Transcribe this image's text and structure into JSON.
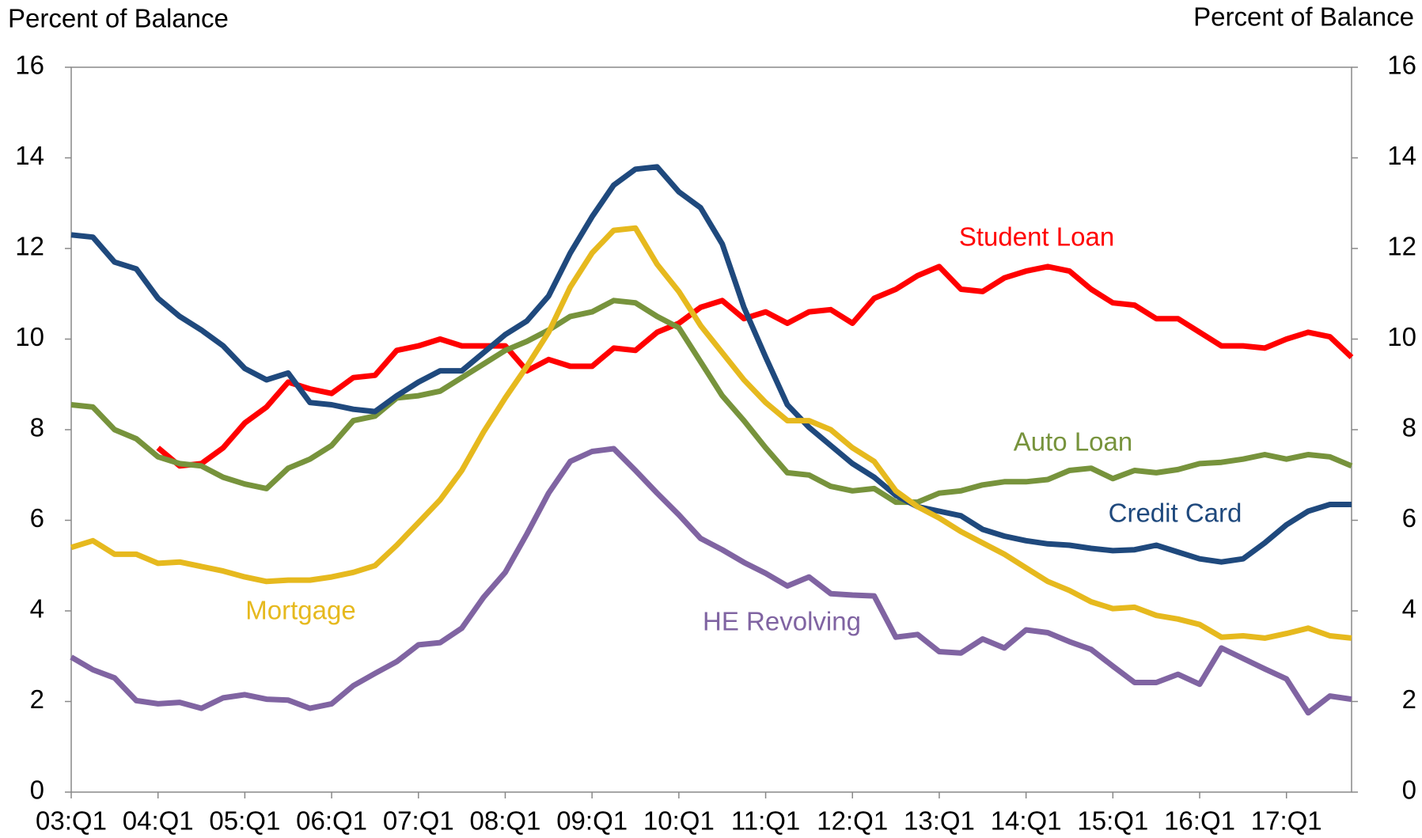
{
  "chart_data": {
    "type": "line",
    "y_label": "Percent of Balance",
    "y2_label": "Percent of Balance",
    "categories": [
      "03:Q1",
      null,
      null,
      null,
      "04:Q1",
      null,
      null,
      null,
      "05:Q1",
      null,
      null,
      null,
      "06:Q1",
      null,
      null,
      null,
      "07:Q1",
      null,
      null,
      null,
      "08:Q1",
      null,
      null,
      null,
      "09:Q1",
      null,
      null,
      null,
      "10:Q1",
      null,
      null,
      null,
      "11:Q1",
      null,
      null,
      null,
      "12:Q1",
      null,
      null,
      null,
      "13:Q1",
      null,
      null,
      null,
      "14:Q1",
      null,
      null,
      null,
      "15:Q1",
      null,
      null,
      null,
      "16:Q1",
      null,
      null,
      null,
      "17:Q1",
      null,
      null,
      null
    ],
    "ylim": [
      0,
      16
    ],
    "yticks": [
      0,
      2,
      4,
      6,
      8,
      10,
      12,
      14,
      16
    ],
    "y2lim": [
      0,
      16
    ],
    "y2ticks": [
      0,
      2,
      4,
      6,
      8,
      10,
      12,
      14,
      16
    ],
    "grid": false,
    "series": [
      {
        "name": "Student Loan",
        "color": "#ff0000",
        "values": [
          null,
          null,
          null,
          null,
          7.6,
          7.2,
          7.25,
          7.6,
          8.15,
          8.5,
          9.05,
          8.9,
          8.8,
          9.15,
          9.2,
          9.75,
          9.85,
          10.0,
          9.85,
          9.85,
          9.85,
          9.3,
          9.55,
          9.4,
          9.4,
          9.8,
          9.75,
          10.15,
          10.35,
          10.7,
          10.85,
          10.45,
          10.6,
          10.35,
          10.6,
          10.65,
          10.35,
          10.9,
          11.1,
          11.4,
          11.6,
          11.1,
          11.05,
          11.35,
          11.5,
          11.6,
          11.5,
          11.1,
          10.8,
          10.75,
          10.45,
          10.45,
          10.15,
          9.85,
          9.85,
          9.8,
          10.0,
          10.15,
          10.05,
          9.6
        ]
      },
      {
        "name": "Auto Loan",
        "color": "#77933c",
        "values": [
          8.55,
          8.5,
          8.0,
          7.8,
          7.4,
          7.25,
          7.2,
          6.95,
          6.8,
          6.7,
          7.15,
          7.35,
          7.65,
          8.2,
          8.3,
          8.7,
          8.75,
          8.85,
          9.15,
          9.45,
          9.75,
          9.95,
          10.2,
          10.5,
          10.6,
          10.85,
          10.8,
          10.5,
          10.25,
          9.5,
          8.75,
          8.2,
          7.6,
          7.05,
          7.0,
          6.75,
          6.65,
          6.7,
          6.4,
          6.4,
          6.6,
          6.65,
          6.78,
          6.85,
          6.85,
          6.9,
          7.1,
          7.15,
          6.92,
          7.1,
          7.05,
          7.12,
          7.25,
          7.28,
          7.35,
          7.45,
          7.35,
          7.45,
          7.4,
          7.2
        ]
      },
      {
        "name": "Credit Card",
        "color": "#1f497d",
        "values": [
          12.3,
          12.25,
          11.7,
          11.55,
          10.9,
          10.5,
          10.2,
          9.85,
          9.35,
          9.1,
          9.25,
          8.6,
          8.55,
          8.45,
          8.4,
          8.75,
          9.05,
          9.3,
          9.3,
          9.7,
          10.1,
          10.4,
          10.95,
          11.9,
          12.7,
          13.4,
          13.75,
          13.8,
          13.25,
          12.9,
          12.1,
          10.7,
          9.6,
          8.55,
          8.05,
          7.65,
          7.25,
          6.95,
          6.55,
          6.3,
          6.2,
          6.1,
          5.8,
          5.65,
          5.55,
          5.48,
          5.45,
          5.38,
          5.33,
          5.35,
          5.45,
          5.3,
          5.15,
          5.08,
          5.15,
          5.5,
          5.9,
          6.2,
          6.35,
          6.35
        ]
      },
      {
        "name": "Mortgage",
        "color": "#e6b91e",
        "values": [
          5.4,
          5.55,
          5.25,
          5.25,
          5.05,
          5.08,
          4.98,
          4.88,
          4.75,
          4.65,
          4.68,
          4.68,
          4.75,
          4.85,
          5.0,
          5.45,
          5.95,
          6.45,
          7.1,
          7.95,
          8.7,
          9.4,
          10.15,
          11.15,
          11.9,
          12.4,
          12.45,
          11.65,
          11.05,
          10.3,
          9.7,
          9.1,
          8.6,
          8.2,
          8.2,
          8.0,
          7.6,
          7.3,
          6.65,
          6.3,
          6.05,
          5.75,
          5.5,
          5.25,
          4.95,
          4.65,
          4.45,
          4.2,
          4.05,
          4.08,
          3.9,
          3.82,
          3.7,
          3.42,
          3.45,
          3.4,
          3.5,
          3.62,
          3.45,
          3.4
        ]
      },
      {
        "name": "HE Revolving",
        "color": "#8064a2",
        "values": [
          2.98,
          2.7,
          2.52,
          2.02,
          1.95,
          1.98,
          1.85,
          2.08,
          2.15,
          2.05,
          2.03,
          1.85,
          1.95,
          2.35,
          2.62,
          2.88,
          3.25,
          3.3,
          3.62,
          4.3,
          4.85,
          5.7,
          6.6,
          7.3,
          7.52,
          7.58,
          7.1,
          6.6,
          6.12,
          5.6,
          5.35,
          5.07,
          4.83,
          4.55,
          4.75,
          4.38,
          4.35,
          4.33,
          3.42,
          3.48,
          3.1,
          3.07,
          3.38,
          3.18,
          3.58,
          3.52,
          3.32,
          3.15,
          2.78,
          2.42,
          2.42,
          2.6,
          2.38,
          3.18,
          2.95,
          2.72,
          2.5,
          1.75,
          2.12,
          2.05
        ]
      }
    ]
  }
}
